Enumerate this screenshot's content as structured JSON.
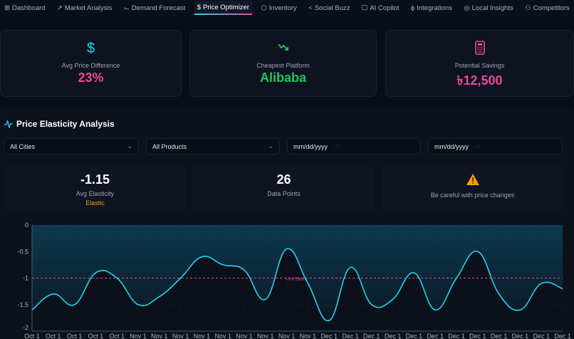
{
  "nav": {
    "tabs": [
      {
        "label": "Dashboard",
        "icon": "grid-icon"
      },
      {
        "label": "Market Analysis",
        "icon": "trend-up-icon"
      },
      {
        "label": "Demand Forecast",
        "icon": "line-chart-icon"
      },
      {
        "label": "Price Optimizer",
        "icon": "dollar-icon",
        "active": true
      },
      {
        "label": "Inventory",
        "icon": "package-icon"
      },
      {
        "label": "Social Buzz",
        "icon": "share-icon"
      },
      {
        "label": "AI Copilot",
        "icon": "bot-icon"
      },
      {
        "label": "Integrations",
        "icon": "plug-icon"
      },
      {
        "label": "Local Insights",
        "icon": "map-pin-icon"
      },
      {
        "label": "Competitors",
        "icon": "users-icon"
      }
    ]
  },
  "summary": [
    {
      "label": "Avg Price Difference",
      "value": "23%",
      "icon": "dollar-icon",
      "color": "#ec4899"
    },
    {
      "label": "Cheapest Platform",
      "value": "Alibaba",
      "icon": "trend-down-icon",
      "color": "#22c55e"
    },
    {
      "label": "Potential Savings",
      "value": "৳12,500",
      "icon": "calculator-icon",
      "color": "#ec4899"
    }
  ],
  "elasticity": {
    "title": "Price Elasticity Analysis",
    "filters": {
      "city": "All Cities",
      "product": "All Products",
      "start_date_placeholder": "mm/dd/yyyy",
      "end_date_placeholder": "mm/dd/yyyy"
    },
    "stats": {
      "avg_value": "-1.15",
      "avg_label": "Avg Elasticity",
      "avg_tag": "Elastic",
      "points_value": "26",
      "points_label": "Data Points",
      "warning": "Be careful with price changes"
    }
  },
  "colors": {
    "line": "#22d3ee",
    "reference": "#ec4899",
    "accent_pink": "#ec4899",
    "accent_green": "#22c55e",
    "warning": "#f59e0b"
  },
  "chart_data": {
    "type": "line",
    "x": [
      "Oct 1",
      "Oct 1",
      "Oct 1",
      "Oct 1",
      "Oct 1",
      "Nov 1",
      "Nov 1",
      "Nov 1",
      "Nov 1",
      "Nov 1",
      "Nov 1",
      "Nov 1",
      "Nov 1",
      "Nov 1",
      "Dec 1",
      "Dec 1",
      "Dec 1",
      "Dec 1",
      "Dec 1",
      "Dec 1",
      "Dec 1",
      "Dec 1",
      "Dec 1",
      "Dec 1",
      "Dec 1",
      "Dec 1"
    ],
    "values": [
      -1.6,
      -1.3,
      -1.5,
      -0.9,
      -1.0,
      -1.5,
      -1.35,
      -1.0,
      -0.6,
      -0.75,
      -0.85,
      -1.4,
      -0.45,
      -1.1,
      -1.8,
      -0.8,
      -1.5,
      -1.4,
      -0.9,
      -1.6,
      -1.0,
      -0.5,
      -1.3,
      -1.6,
      -1.1,
      -1.2
    ],
    "ylim": [
      -2,
      0
    ],
    "yticks": [
      "0",
      "-0.5",
      "-1",
      "-1.5",
      "-2"
    ],
    "reference_line": {
      "y": -1,
      "label": "Unit Elastic"
    },
    "grid": true
  }
}
